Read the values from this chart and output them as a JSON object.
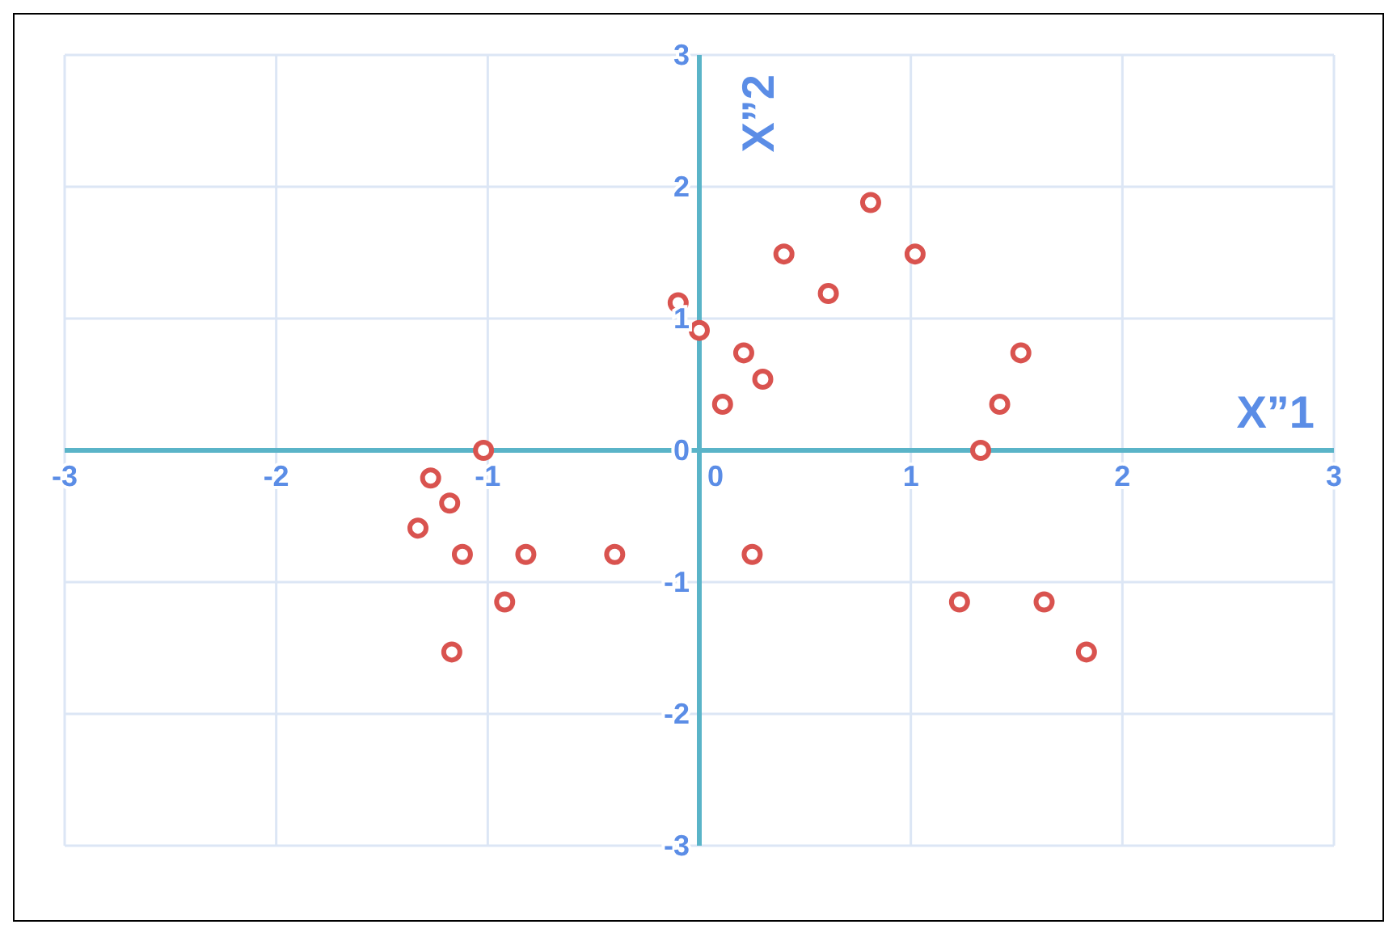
{
  "chart_data": {
    "type": "scatter",
    "xlabel": "X”1",
    "ylabel": "X”2",
    "x": [
      -0.1,
      0,
      0.21,
      0.3,
      0.11,
      0.4,
      0.61,
      0.81,
      1.02,
      1.52,
      1.42,
      1.33,
      -1.02,
      -1.27,
      -1.18,
      -1.33,
      -1.12,
      -0.82,
      -0.4,
      0.25,
      -0.92,
      -1.17,
      1.23,
      1.63,
      1.83
    ],
    "values": [
      1.12,
      0.91,
      0.74,
      0.54,
      0.35,
      1.49,
      1.19,
      1.88,
      1.49,
      0.74,
      0.35,
      0,
      0,
      -0.21,
      -0.4,
      -0.59,
      -0.79,
      -0.79,
      -0.79,
      -0.79,
      -1.15,
      -1.53,
      -1.15,
      -1.15,
      -1.53
    ],
    "color": "#d9534f",
    "marker": "circle",
    "grid": true,
    "xlim": [
      -3,
      3
    ],
    "xticks": [
      -3,
      -2,
      -1,
      0,
      1,
      2,
      3
    ],
    "ylim": [
      -3,
      3
    ],
    "yticks": [
      -3,
      -2,
      -1,
      0,
      1,
      2,
      3
    ]
  }
}
